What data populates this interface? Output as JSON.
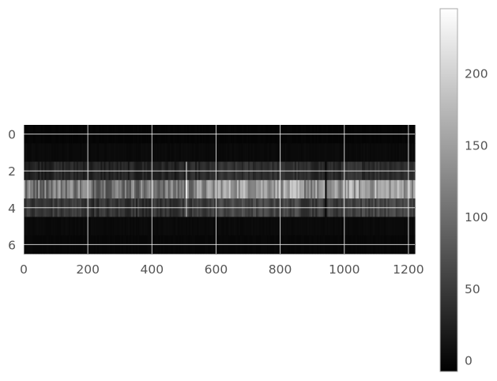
{
  "chart_data": {
    "type": "heatmap",
    "colormap": "gray",
    "grid": true,
    "grid_color": "#ffffff",
    "xlim": [
      0,
      1220
    ],
    "ylim": [
      6.5,
      -0.5
    ],
    "x_ticks": [
      0,
      200,
      400,
      600,
      800,
      1000,
      1200
    ],
    "y_ticks": [
      0,
      2,
      4,
      6
    ],
    "n_rows": 7,
    "n_cols": 1220,
    "rows": [
      {
        "index": 0,
        "base": 5,
        "variation": 3
      },
      {
        "index": 1,
        "base": 10,
        "variation": 4
      },
      {
        "index": 2,
        "base": 48,
        "variation": 14
      },
      {
        "index": 3,
        "base": 165,
        "variation": 45
      },
      {
        "index": 4,
        "base": 70,
        "variation": 20
      },
      {
        "index": 5,
        "base": 10,
        "variation": 4
      },
      {
        "index": 6,
        "base": 7,
        "variation": 3
      }
    ],
    "features": [
      {
        "x": 505,
        "type": "bright-line",
        "value": 235
      },
      {
        "x": 940,
        "type": "dark-line",
        "value": 5
      }
    ],
    "colorbar": {
      "vmin": -8,
      "vmax": 245,
      "ticks": [
        0,
        50,
        100,
        150,
        200
      ],
      "edge_color": "#aaaaaa"
    }
  }
}
